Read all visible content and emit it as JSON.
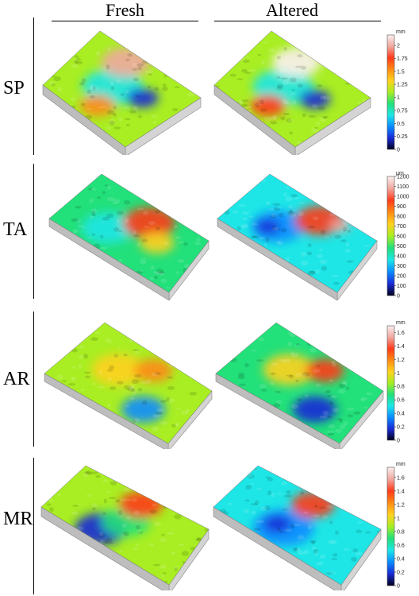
{
  "columns": [
    "Fresh",
    "Altered"
  ],
  "rows": [
    {
      "label": "SP",
      "unit": "mm",
      "max": 2.2,
      "ticks": [
        "0",
        "0.25",
        "0.5",
        "0.75",
        "1",
        "1.25",
        "1.5",
        "1.75",
        "2"
      ],
      "tick_values": [
        0,
        0.25,
        0.5,
        0.75,
        1,
        1.25,
        1.5,
        1.75,
        2
      ]
    },
    {
      "label": "TA",
      "unit": "µm",
      "max": 1200,
      "ticks": [
        "0",
        "100",
        "200",
        "300",
        "400",
        "500",
        "600",
        "700",
        "800",
        "900",
        "1000",
        "1100",
        "1200"
      ],
      "tick_values": [
        0,
        100,
        200,
        300,
        400,
        500,
        600,
        700,
        800,
        900,
        1000,
        1100,
        1200
      ]
    },
    {
      "label": "AR",
      "unit": "mm",
      "max": 1.7,
      "ticks": [
        "0",
        "0.2",
        "0.4",
        "0.6",
        "0.8",
        "1",
        "1.2",
        "1.4",
        "1.6"
      ],
      "tick_values": [
        0,
        0.2,
        0.4,
        0.6,
        0.8,
        1,
        1.2,
        1.4,
        1.6
      ]
    },
    {
      "label": "MR",
      "unit": "mm",
      "max": 1.75,
      "ticks": [
        "0",
        "0.2",
        "0.4",
        "0.6",
        "0.8",
        "1",
        "1.2",
        "1.4",
        "1.6"
      ],
      "tick_values": [
        0,
        0.2,
        0.4,
        0.6,
        0.8,
        1,
        1.2,
        1.4,
        1.6
      ]
    }
  ],
  "colormap": [
    "#00001a",
    "#1a2ad6",
    "#0a8cff",
    "#1ee6e6",
    "#22e07a",
    "#a8ee22",
    "#ffd21e",
    "#ff8a14",
    "#ff3a1a",
    "#f0a8a0",
    "#fbf0f0"
  ]
}
